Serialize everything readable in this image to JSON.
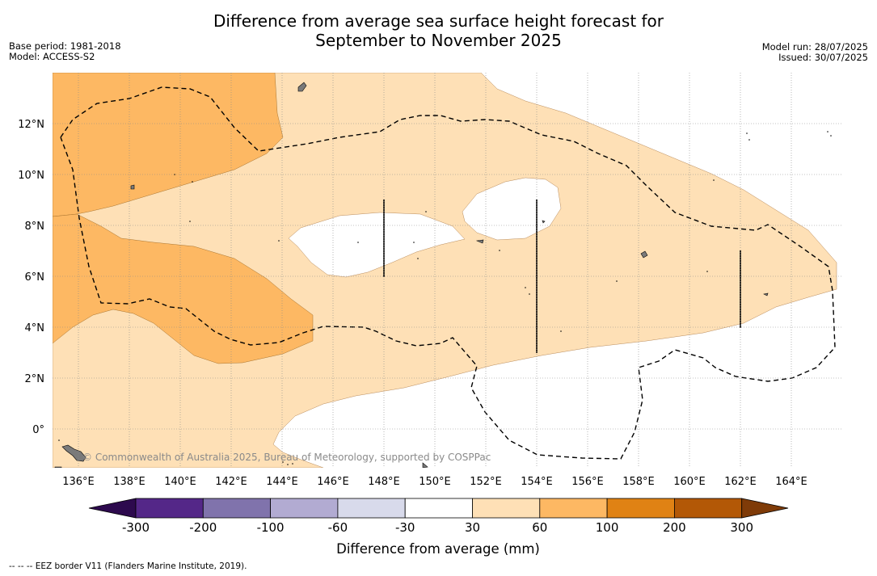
{
  "title_line1": "Difference from average sea surface height forecast for",
  "title_line2": "September to November 2025",
  "meta_left": {
    "base_period": "Base period: 1981-2018",
    "model": "Model: ACCESS-S2"
  },
  "meta_right": {
    "model_run": "Model run: 28/07/2025",
    "issued": "Issued: 30/07/2025"
  },
  "map": {
    "lat_labels": [
      "12°N",
      "10°N",
      "8°N",
      "6°N",
      "4°N",
      "2°N",
      "0°"
    ],
    "lon_labels": [
      "136°E",
      "138°E",
      "140°E",
      "142°E",
      "144°E",
      "146°E",
      "148°E",
      "150°E",
      "152°E",
      "154°E",
      "156°E",
      "158°E",
      "160°E",
      "162°E",
      "164°E"
    ],
    "watermark": "© Commonwealth of Australia 2025, Bureau of Meteorology, supported by COSPPac"
  },
  "legend": {
    "tick_labels": [
      "-300",
      "-200",
      "-100",
      "-60",
      "-30",
      "30",
      "60",
      "100",
      "200",
      "300"
    ],
    "label": "Difference from average (mm)",
    "colors": [
      "#2d0a4e",
      "#542788",
      "#8073ac",
      "#b2abd2",
      "#d8daeb",
      "#ffffff",
      "#fee0b6",
      "#fdb863",
      "#e08214",
      "#b35806",
      "#7f3b08"
    ]
  },
  "footnote": "--  --  -- EEZ border V11 (Flanders Marine Institute, 2019)."
}
